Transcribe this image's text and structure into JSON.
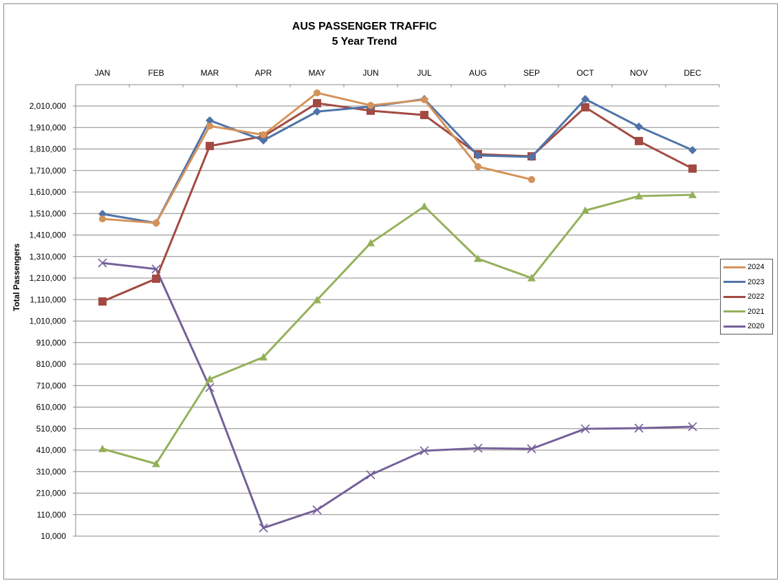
{
  "chart_data": {
    "type": "line",
    "title": "AUS PASSENGER TRAFFIC",
    "subtitle": "5 Year Trend",
    "xlabel": "",
    "ylabel": "Total Passengers",
    "categories": [
      "JAN",
      "FEB",
      "MAR",
      "APR",
      "MAY",
      "JUN",
      "JUL",
      "AUG",
      "SEP",
      "OCT",
      "NOV",
      "DEC"
    ],
    "ylim": [
      10000,
      2010000
    ],
    "yticks": [
      10000,
      110000,
      210000,
      310000,
      410000,
      510000,
      610000,
      710000,
      810000,
      910000,
      1010000,
      1110000,
      1210000,
      1310000,
      1410000,
      1510000,
      1610000,
      1710000,
      1810000,
      1910000,
      2010000
    ],
    "ytick_labels": [
      "10,000",
      "110,000",
      "210,000",
      "310,000",
      "410,000",
      "510,000",
      "610,000",
      "710,000",
      "810,000",
      "910,000",
      "1,010,000",
      "1,110,000",
      "1,210,000",
      "1,310,000",
      "1,410,000",
      "1,510,000",
      "1,610,000",
      "1,710,000",
      "1,810,000",
      "1,910,000",
      "2,010,000"
    ],
    "grid": true,
    "legend_position": "right",
    "series": [
      {
        "name": "2024",
        "color": "#D4935A",
        "marker": "circle",
        "values": [
          1485000,
          1466000,
          1917000,
          1876000,
          2071000,
          2013000,
          2039000,
          1728000,
          1668000,
          null,
          null,
          null
        ]
      },
      {
        "name": "2023",
        "color": "#4F73A8",
        "marker": "diamond",
        "values": [
          1508000,
          1466000,
          1943000,
          1850000,
          1984000,
          2007000,
          2042000,
          1780000,
          1773000,
          2042000,
          1914000,
          1805000
        ]
      },
      {
        "name": "2022",
        "color": "#A24A42",
        "marker": "square",
        "values": [
          1101000,
          1207000,
          1824000,
          1869000,
          2023000,
          1988000,
          1968000,
          1786000,
          1776000,
          2004000,
          1847000,
          1719000
        ]
      },
      {
        "name": "2021",
        "color": "#94B05A",
        "marker": "triangle",
        "values": [
          416000,
          346000,
          740000,
          842000,
          1108000,
          1373000,
          1543000,
          1300000,
          1210000,
          1524000,
          1591000,
          1597000
        ]
      },
      {
        "name": "2020",
        "color": "#74609A",
        "marker": "x",
        "values": [
          1280000,
          1252000,
          701000,
          48000,
          132000,
          295000,
          407000,
          419000,
          416000,
          509000,
          512000,
          519000
        ]
      }
    ]
  }
}
